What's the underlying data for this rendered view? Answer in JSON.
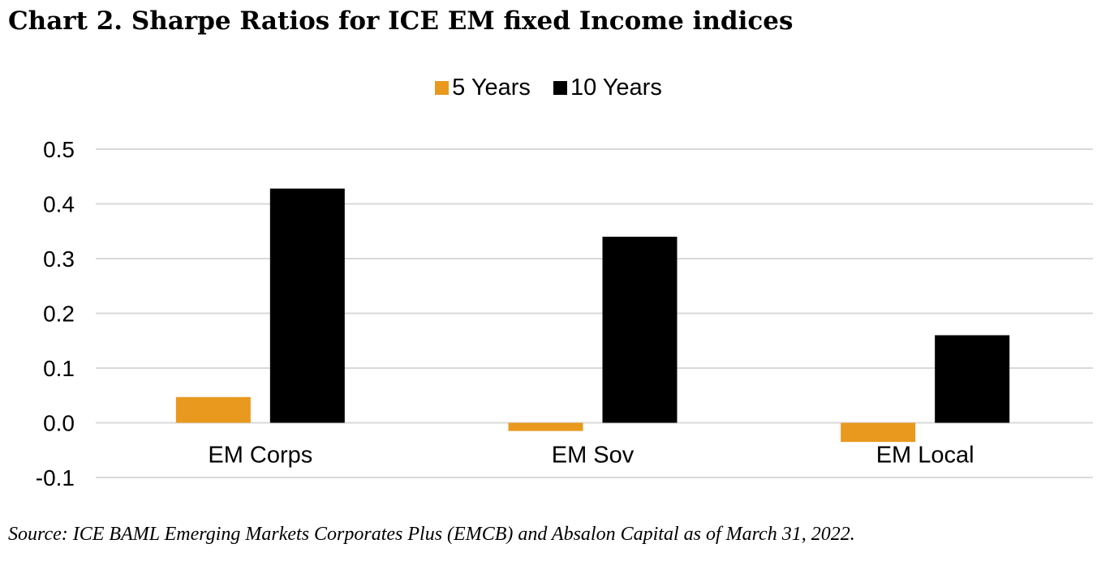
{
  "title": "Chart 2. Sharpe Ratios for ICE EM fixed Income indices",
  "source": "Source: ICE BAML Emerging Markets Corporates Plus (EMCB) and Absalon Capital as of March 31, 2022.",
  "chart_data": {
    "type": "bar",
    "categories": [
      "EM Corps",
      "EM Sov",
      "EM Local"
    ],
    "series": [
      {
        "name": "5 Years",
        "color": "#e8991e",
        "values": [
          0.047,
          -0.015,
          -0.035
        ]
      },
      {
        "name": "10 Years",
        "color": "#000000",
        "values": [
          0.428,
          0.34,
          0.16
        ]
      }
    ],
    "yticks": [
      "0.5",
      "0.4",
      "0.3",
      "0.2",
      "0.1",
      "0.0",
      "-0.1"
    ],
    "ylim": [
      -0.1,
      0.5
    ],
    "grid": true,
    "legend": "top-center"
  }
}
